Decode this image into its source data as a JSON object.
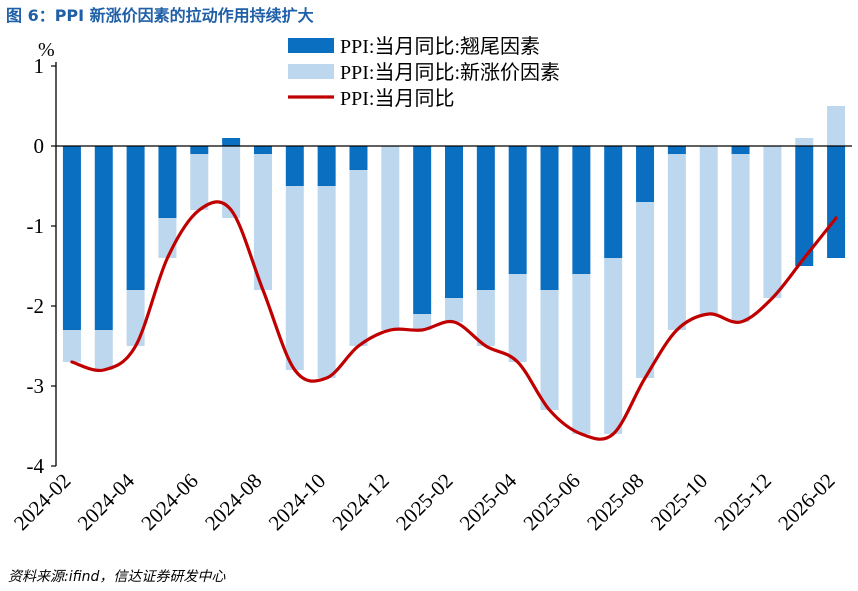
{
  "figure": {
    "title": "图 6：PPI 新涨价因素的拉动作用持续扩大",
    "source": "资料来源:ifind，信达证券研发中心"
  },
  "colors": {
    "carryover": "#0b6fc1",
    "new_factor": "#bcd7ee",
    "line": "#c00000",
    "title": "#1f5fa6"
  },
  "chart_data": {
    "type": "bar",
    "unit": "%",
    "ylim": [
      -4,
      1
    ],
    "yticks": [
      1,
      0,
      -1,
      -2,
      -3,
      -4
    ],
    "legend_position": "top-center",
    "categories": [
      "2024-02",
      "2024-03",
      "2024-04",
      "2024-05",
      "2024-06",
      "2024-07",
      "2024-08",
      "2024-09",
      "2024-10",
      "2024-11",
      "2024-12",
      "2025-01",
      "2025-02",
      "2025-03",
      "2025-04",
      "2025-05",
      "2025-06",
      "2025-07",
      "2025-08",
      "2025-09",
      "2025-10",
      "2025-11",
      "2025-12",
      "2026-01",
      "2026-02"
    ],
    "xtick_labels": [
      "2024-02",
      "2024-04",
      "2024-06",
      "2024-08",
      "2024-10",
      "2024-12",
      "2025-02",
      "2025-04",
      "2025-06",
      "2025-08",
      "2025-10",
      "2025-12",
      "2026-02"
    ],
    "series": [
      {
        "name": "PPI:当月同比:翘尾因素",
        "kind": "bar",
        "values": [
          -2.3,
          -2.3,
          -1.8,
          -0.9,
          -0.1,
          0.1,
          -0.1,
          -0.5,
          -0.5,
          -0.3,
          0.0,
          -2.1,
          -1.9,
          -1.8,
          -1.6,
          -1.8,
          -1.6,
          -1.4,
          -0.7,
          -0.1,
          0.0,
          -0.1,
          0.0,
          -1.5,
          -1.4
        ]
      },
      {
        "name": "PPI:当月同比:新涨价因素",
        "kind": "bar",
        "values": [
          -0.4,
          -0.5,
          -0.7,
          -0.5,
          -0.7,
          -0.9,
          -1.7,
          -2.3,
          -2.4,
          -2.2,
          -2.3,
          -0.2,
          -0.3,
          -0.7,
          -1.1,
          -1.5,
          -2.0,
          -2.2,
          -2.2,
          -2.2,
          -2.1,
          -2.1,
          -1.9,
          0.1,
          0.5
        ]
      },
      {
        "name": "PPI:当月同比",
        "kind": "line",
        "values": [
          -2.7,
          -2.8,
          -2.5,
          -1.4,
          -0.8,
          -0.8,
          -1.8,
          -2.8,
          -2.9,
          -2.5,
          -2.3,
          -2.3,
          -2.2,
          -2.5,
          -2.7,
          -3.3,
          -3.6,
          -3.6,
          -2.9,
          -2.3,
          -2.1,
          -2.2,
          -1.9,
          -1.4,
          -0.9
        ]
      }
    ]
  }
}
